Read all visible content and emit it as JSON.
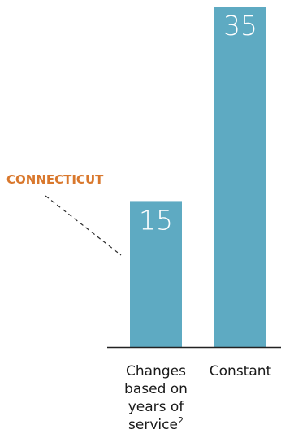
{
  "chart_data": {
    "type": "bar",
    "categories": [
      {
        "lines": [
          "Changes",
          "based on",
          "years of",
          "service"
        ],
        "superscript": "2"
      },
      {
        "lines": [
          "Constant"
        ],
        "superscript": ""
      }
    ],
    "values": [
      15,
      35
    ],
    "data_labels": [
      "15",
      "35"
    ],
    "ylim": [
      0,
      35
    ],
    "grid": false,
    "legend": "none",
    "annotation": {
      "text": "CONNECTICUT",
      "target_category_index": 0
    },
    "colors": {
      "bar": "#5eaac2",
      "annotation": "#d9782d",
      "leader": "#2b2b2b",
      "axis": "#222222",
      "text": "#1a1a1a",
      "bar_label": "#ffffff"
    }
  }
}
